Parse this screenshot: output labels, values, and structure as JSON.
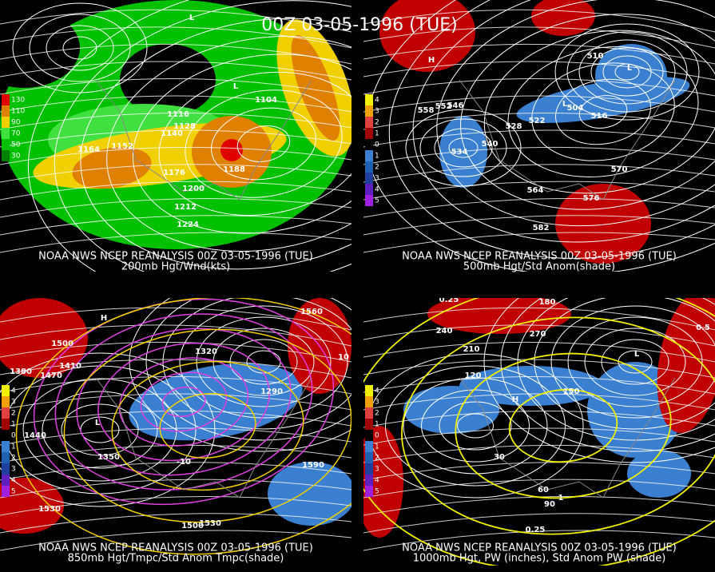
{
  "title": "00Z 03-05-1996 (TUE)",
  "panels": [
    {
      "caption": "NOAA NWS NCEP REANALYSIS 00Z 03-05-1996 (TUE)",
      "subcaption": "200mb Hgt/Wnd(kts)",
      "legend": [
        "130",
        "110",
        "90",
        "70",
        "50",
        "30"
      ],
      "labels": [
        "1104",
        "1116",
        "1128",
        "1140",
        "1152",
        "1164",
        "1176",
        "1188",
        "1200",
        "1212",
        "1224",
        "L",
        "L"
      ]
    },
    {
      "caption": "NOAA NWS NCEP REANALYSIS 00Z 03-05-1996 (TUE)",
      "subcaption": "500mb Hgt/Std Anom(shade)",
      "legend": [
        "4",
        "3",
        "2",
        "1",
        "0",
        "1",
        "2",
        "3",
        "4",
        "5"
      ],
      "labels": [
        "558",
        "552",
        "546",
        "540",
        "534",
        "528",
        "522",
        "516",
        "510",
        "504",
        "570",
        "564",
        "576",
        "582",
        "H",
        "L",
        "L"
      ]
    },
    {
      "caption": "NOAA NWS NCEP REANALYSIS 00Z 03-05-1996 (TUE)",
      "subcaption": "850mb Hgt/Tmpc/Std Anom Tmpc(shade)",
      "legend": [
        "4",
        "3",
        "2",
        "1",
        "0",
        "1",
        "2",
        "3",
        "4",
        "5"
      ],
      "labels": [
        "1560",
        "1500",
        "1470",
        "1410",
        "1380",
        "1320",
        "1290",
        "1440",
        "1350",
        "1530",
        "1590",
        "1500",
        "1530",
        "H",
        "L",
        "10",
        "-10"
      ]
    },
    {
      "caption": "NOAA NWS NCEP REANALYSIS 00Z 03-05-1996 (TUE)",
      "subcaption": "1000mb Hgt, PW (inches), Std Anom PW (shade)",
      "legend": [
        "4",
        "3",
        "2",
        "1",
        "0",
        "1",
        "2",
        "3",
        "4",
        "5"
      ],
      "labels": [
        "0.25",
        "180",
        "240",
        "270",
        "210",
        "120",
        "150",
        "30",
        "60",
        "90",
        "0.5",
        "1",
        "H",
        "L",
        "0.25"
      ]
    }
  ]
}
